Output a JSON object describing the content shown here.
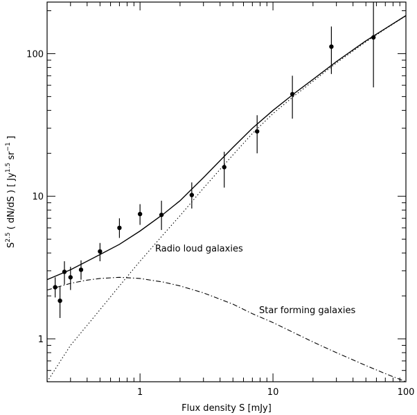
{
  "chart_data": {
    "type": "scatter",
    "xscale": "log",
    "yscale": "log",
    "xlim": [
      0.2,
      100
    ],
    "ylim": [
      0.5,
      230
    ],
    "xlabel": "Flux density S [mJy]",
    "ylabel": {
      "prefix": "S",
      "prefix_exp": "2.5",
      "middle": " ( dN/dS ) [ Jy",
      "unit_exp": "1.5",
      "sr": " sr",
      "sr_exp": "−1",
      "suffix": " ]"
    },
    "x_ticks": [
      {
        "value": 1,
        "label": "1"
      },
      {
        "value": 10,
        "label": "10"
      },
      {
        "value": 100,
        "label": "100"
      }
    ],
    "y_ticks": [
      {
        "value": 1,
        "label": "1"
      },
      {
        "value": 10,
        "label": "10"
      },
      {
        "value": 100,
        "label": "100"
      }
    ],
    "annotations": {
      "radio_loud": "Radio loud galaxies",
      "star_forming": "Star forming galaxies"
    },
    "series": [
      {
        "style": "points",
        "x": [
          0.23,
          0.25,
          0.27,
          0.3,
          0.36,
          0.5,
          0.7,
          1.0,
          1.45,
          2.45,
          4.3,
          7.6,
          14.0,
          27.5,
          57.0
        ],
        "y": [
          2.3,
          1.85,
          2.95,
          2.7,
          3.05,
          4.1,
          6.0,
          7.5,
          7.4,
          10.2,
          16.0,
          28.5,
          52.0,
          112.0,
          130.0
        ],
        "ylow": [
          1.95,
          1.4,
          2.4,
          2.2,
          2.6,
          3.5,
          5.1,
          6.3,
          5.8,
          8.2,
          11.5,
          20.0,
          35.0,
          72.0,
          58.0
        ],
        "yhigh": [
          2.7,
          2.35,
          3.5,
          3.2,
          3.55,
          4.7,
          7.0,
          8.8,
          9.3,
          12.5,
          20.5,
          37.0,
          70.0,
          155.0,
          230.0
        ]
      },
      {
        "style": "solid",
        "x": [
          0.2,
          0.3,
          0.5,
          0.7,
          1.0,
          1.5,
          2.0,
          3.0,
          5.0,
          7.0,
          10.0,
          15.0,
          20.0,
          30.0,
          50.0,
          70.0,
          100.0
        ],
        "y": [
          2.6,
          3.05,
          3.9,
          4.6,
          5.7,
          7.5,
          9.3,
          13.5,
          22.0,
          30.0,
          40.0,
          54.0,
          66.0,
          88.0,
          123.0,
          150.0,
          185.0
        ]
      },
      {
        "style": "dotted",
        "x": [
          0.2,
          0.3,
          0.5,
          0.7,
          1.0,
          1.5,
          2.0,
          3.0,
          5.0,
          7.0,
          10.0,
          15.0,
          20.0,
          30.0,
          50.0,
          70.0,
          100.0
        ],
        "y": [
          0.5,
          0.9,
          1.6,
          2.35,
          3.5,
          5.4,
          7.3,
          11.4,
          19.5,
          27.5,
          38.0,
          52.0,
          64.0,
          86.0,
          121.0,
          149.0,
          184.0
        ]
      },
      {
        "style": "dashdot",
        "x": [
          0.2,
          0.3,
          0.4,
          0.5,
          0.7,
          1.0,
          1.5,
          2.0,
          3.0,
          5.0,
          7.0,
          10.0,
          20.0,
          30.0,
          50.0,
          70.0,
          100.0
        ],
        "y": [
          2.2,
          2.45,
          2.58,
          2.65,
          2.7,
          2.65,
          2.5,
          2.35,
          2.1,
          1.75,
          1.5,
          1.3,
          0.95,
          0.8,
          0.65,
          0.57,
          0.5
        ]
      }
    ]
  }
}
